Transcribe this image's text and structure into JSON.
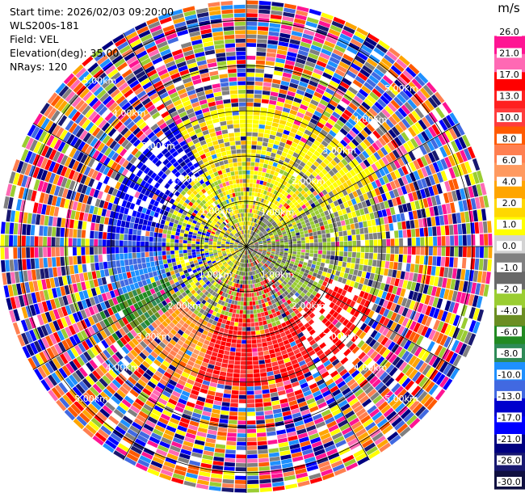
{
  "info": {
    "start_time": "Start time: 2026/02/03 09:20:00",
    "instrument": "WLS200s-181",
    "field": "Field: VEL",
    "elevation": "Elevation(deg): 35.00",
    "nrays": "NRays: 120"
  },
  "chart_data": {
    "type": "heatmap",
    "projection": "polar-ppi",
    "title": "",
    "range_rings_km": [
      1,
      2,
      3,
      4,
      5
    ],
    "ring_labels": {
      "1": "1.00km",
      "2": "2.00km",
      "3": "3.00km",
      "4": "4.00km",
      "5": "5.00km"
    },
    "max_range_km": 5.45,
    "spokes_deg": [
      0,
      30,
      60,
      90,
      120,
      150,
      180,
      210,
      240,
      270,
      300,
      330
    ],
    "n_rays": 120,
    "colorbar": {
      "unit": "m/s",
      "tick_labels": [
        "26.0",
        "21.0",
        "17.0",
        "13.0",
        "10.0",
        "8.0",
        "6.0",
        "4.0",
        "2.0",
        "1.0",
        "0.0",
        "-1.0",
        "-2.0",
        "-4.0",
        "-6.0",
        "-8.0",
        "-10.0",
        "-13.0",
        "-17.0",
        "-21.0",
        "-26.0",
        "-30.0"
      ],
      "colors": [
        "#ffffff",
        "#ff1493",
        "#ff69b4",
        "#ff0000",
        "#ff2020",
        "#ff3c3c",
        "#ff5a00",
        "#ff7f50",
        "#ff9a60",
        "#ffa500",
        "#ffd700",
        "#ffff00",
        "#d3d3d3",
        "#808080",
        "#696969",
        "#9acd32",
        "#6b8e23",
        "#228b22",
        "#2e8b57",
        "#1e90ff",
        "#4169e1",
        "#0000cd",
        "#0000ff",
        "#000080",
        "#191970",
        "#101040"
      ]
    }
  }
}
